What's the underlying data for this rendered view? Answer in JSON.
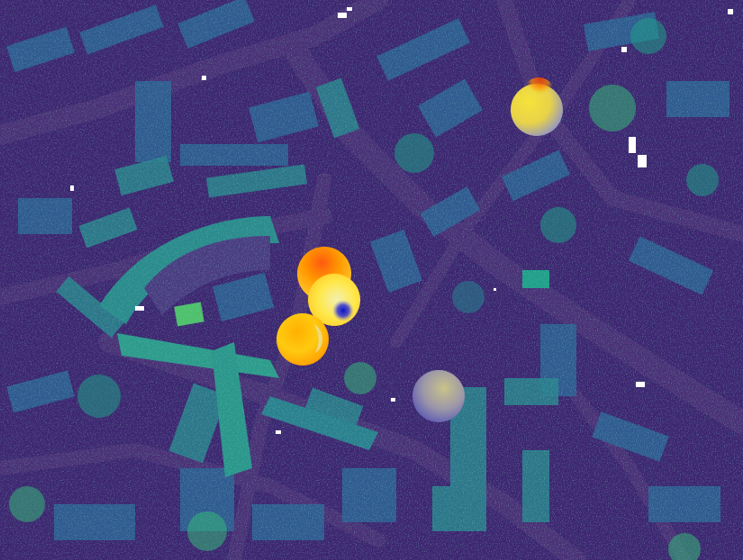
{
  "map": {
    "colormap": "viridis",
    "background_color": "#3b1f6e",
    "street_color": "#452a72",
    "building_colors": [
      "#3a3f82",
      "#3d5090",
      "#2f6b8e",
      "#26838e",
      "#2aa18a"
    ],
    "vegetation_colors": [
      "#1f9e89",
      "#35b779",
      "#6ece58",
      "#b5de2b"
    ],
    "nodata_color": "#ffffff"
  },
  "overlay": {
    "colors": {
      "hot": "#e53a12",
      "warm": "#ffa500",
      "mid": "#ffe84a",
      "pale": "#f2f0b0",
      "cold": "#1a1ab8"
    },
    "markers": [
      {
        "id": "blob-a",
        "temperature_balance": 0.5
      },
      {
        "id": "blob-b",
        "temperature_balance": 0.85
      },
      {
        "id": "blob-c",
        "temperature_balance": 0.75
      },
      {
        "id": "blob-d",
        "temperature_balance": 0.45
      },
      {
        "id": "blob-e",
        "temperature_balance": 0.3
      }
    ]
  }
}
